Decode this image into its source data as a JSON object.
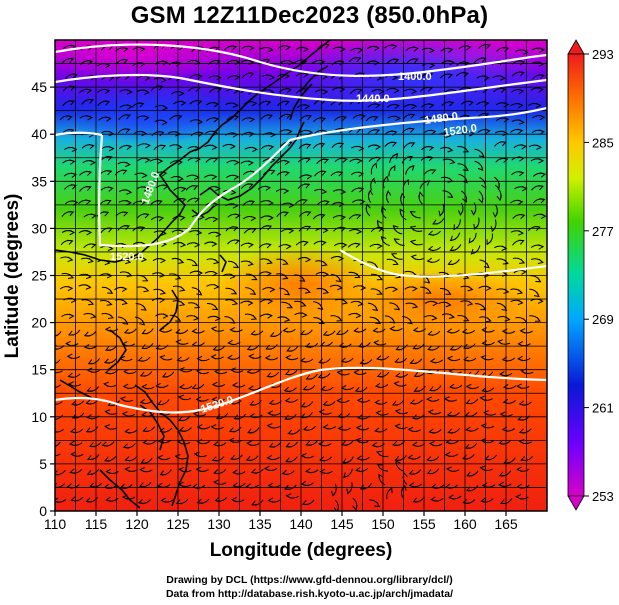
{
  "title": "GSM 12Z11Dec2023 (850.0hPa)",
  "x_axis": {
    "label": "Longitude (degrees)",
    "range": [
      110,
      170
    ],
    "ticks": [
      "110",
      "115",
      "120",
      "125",
      "130",
      "135",
      "140",
      "145",
      "150",
      "155",
      "160",
      "165"
    ]
  },
  "y_axis": {
    "label": "Latitude  (degrees)",
    "range": [
      0,
      50
    ],
    "ticks": [
      "0",
      "5",
      "10",
      "15",
      "20",
      "25",
      "30",
      "35",
      "40",
      "45"
    ]
  },
  "colorbar": {
    "ticks": [
      "293",
      "285",
      "277",
      "269",
      "261",
      "253"
    ],
    "stops": [
      "#d400d0",
      "#6a00ff",
      "#0018d8",
      "#00b8ff",
      "#00d8a0",
      "#40d400",
      "#d8f000",
      "#ffd000",
      "#ff8000",
      "#ff2000",
      "#ee1c1c"
    ]
  },
  "contours": [
    {
      "label": "1400.0"
    },
    {
      "label": "1440.0"
    },
    {
      "label": "1480.0"
    },
    {
      "label": "1520.0"
    },
    {
      "label": "1480.0"
    },
    {
      "label": "1520.0"
    },
    {
      "label": "1520.0"
    }
  ],
  "credits": {
    "line1": "Drawing by DCL (https://www.gfd-dennou.org/library/dcl/)",
    "line2": "Data from http://database.rish.kyoto-u.ac.jp/arch/jmadata/"
  }
}
